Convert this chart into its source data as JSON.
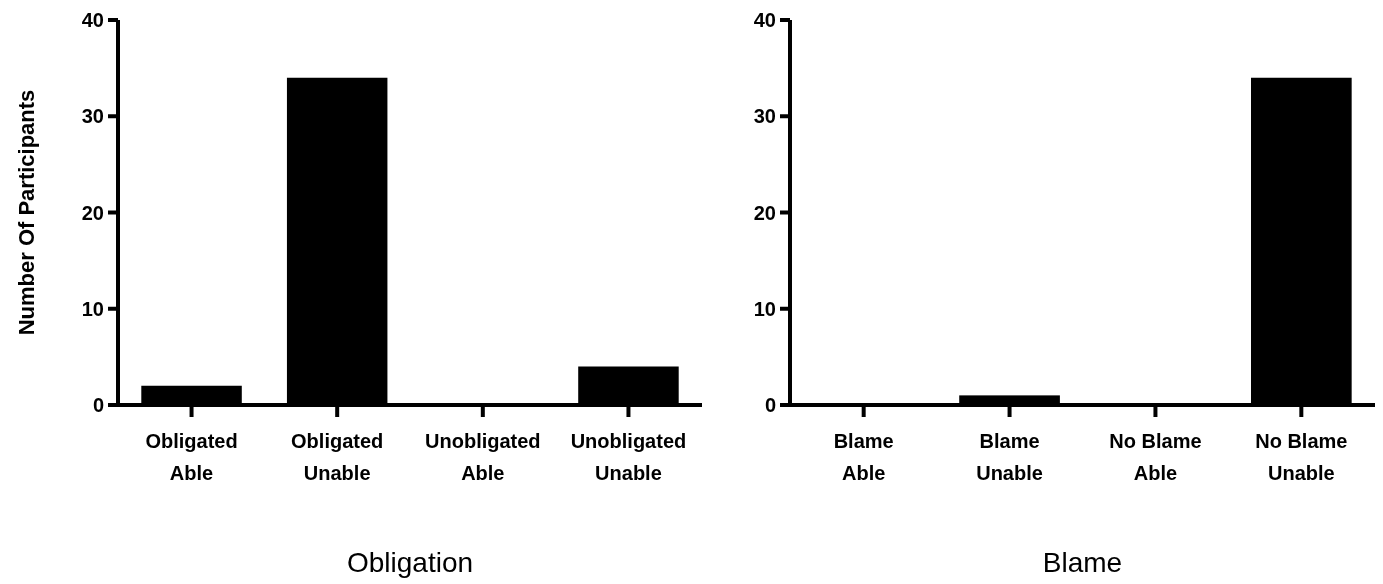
{
  "chart_data": [
    {
      "type": "bar",
      "xlabel": "Obligation",
      "ylabel": "Number Of Participants",
      "categories": [
        "Obligated Able",
        "Obligated Unable",
        "Unobligated Able",
        "Unobligated Unable"
      ],
      "values": [
        2,
        34,
        0,
        4
      ],
      "color": "#000000",
      "ylim": [
        0,
        40
      ],
      "yticks": [
        0,
        10,
        20,
        30,
        40
      ]
    },
    {
      "type": "bar",
      "xlabel": "Blame",
      "categories": [
        "Blame Able",
        "Blame Unable",
        "No Blame Able",
        "No Blame Unable"
      ],
      "values": [
        0,
        1,
        0,
        34
      ],
      "color": "#000000",
      "ylim": [
        0,
        40
      ],
      "yticks": [
        0,
        10,
        20,
        30,
        40
      ]
    }
  ]
}
